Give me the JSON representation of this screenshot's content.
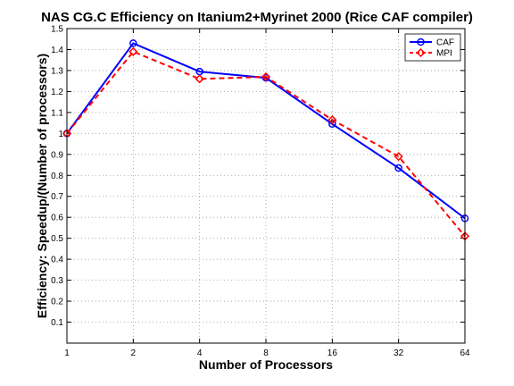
{
  "chart_data": {
    "type": "line",
    "title": "NAS CG.C Efficiency on Itanium2+Myrinet 2000 (Rice CAF compiler)",
    "xlabel": "Number of Processors",
    "ylabel": "Efficiency: Speedup/(Number of processors)",
    "categories": [
      "1",
      "2",
      "4",
      "8",
      "16",
      "32",
      "64"
    ],
    "ylim": [
      0,
      1.5
    ],
    "yticks": [
      "0.1",
      "0.2",
      "0.3",
      "0.4",
      "0.5",
      "0.6",
      "0.7",
      "0.8",
      "0.9",
      "1",
      "1.1",
      "1.2",
      "1.3",
      "1.4",
      "1.5"
    ],
    "grid": true,
    "legend_position": "top-right",
    "series": [
      {
        "name": "CAF",
        "color": "#0000ff",
        "line_style": "solid",
        "marker": "circle",
        "values": [
          1.0,
          1.43,
          1.295,
          1.265,
          1.045,
          0.835,
          0.595
        ]
      },
      {
        "name": "MPI",
        "color": "#ff0000",
        "line_style": "dashed",
        "marker": "diamond",
        "values": [
          1.0,
          1.39,
          1.26,
          1.27,
          1.065,
          0.89,
          0.51
        ]
      }
    ]
  }
}
